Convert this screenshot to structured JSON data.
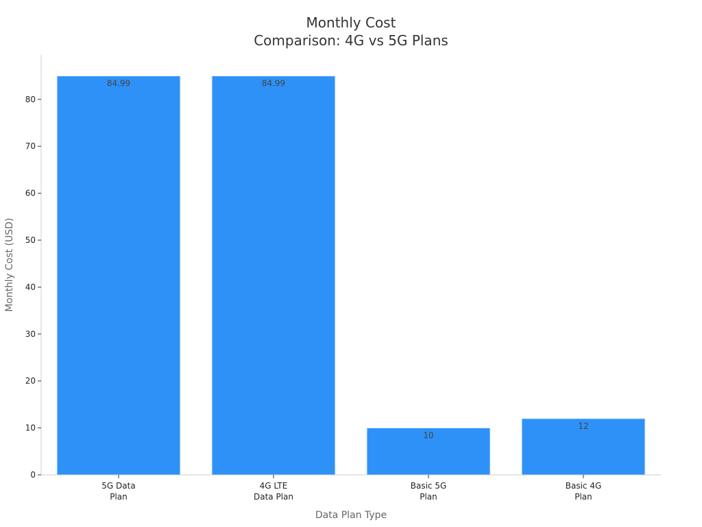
{
  "chart_data": {
    "type": "bar",
    "title_lines": [
      "Monthly Cost",
      "Comparison: 4G vs 5G Plans"
    ],
    "xlabel": "Data Plan Type",
    "ylabel": "Monthly Cost (USD)",
    "categories": [
      [
        "5G Data",
        "Plan"
      ],
      [
        "4G LTE",
        "Data Plan"
      ],
      [
        "Basic 5G",
        "Plan"
      ],
      [
        "Basic 4G",
        "Plan"
      ]
    ],
    "values": [
      84.99,
      84.99,
      10,
      12
    ],
    "data_labels": [
      "84.99",
      "84.99",
      "10",
      "12"
    ],
    "y_ticks": [
      0,
      10,
      20,
      30,
      40,
      50,
      60,
      70,
      80
    ],
    "ylim": [
      0,
      89
    ],
    "grid": false,
    "legend": "none",
    "colors": {
      "bar": "#2e91f8",
      "bar_edge": "#e8f2ff",
      "axis": "#cccccc",
      "title": "#333333",
      "axis_label": "#666666",
      "tick_label": "#222222",
      "data_label": "#444444"
    }
  }
}
